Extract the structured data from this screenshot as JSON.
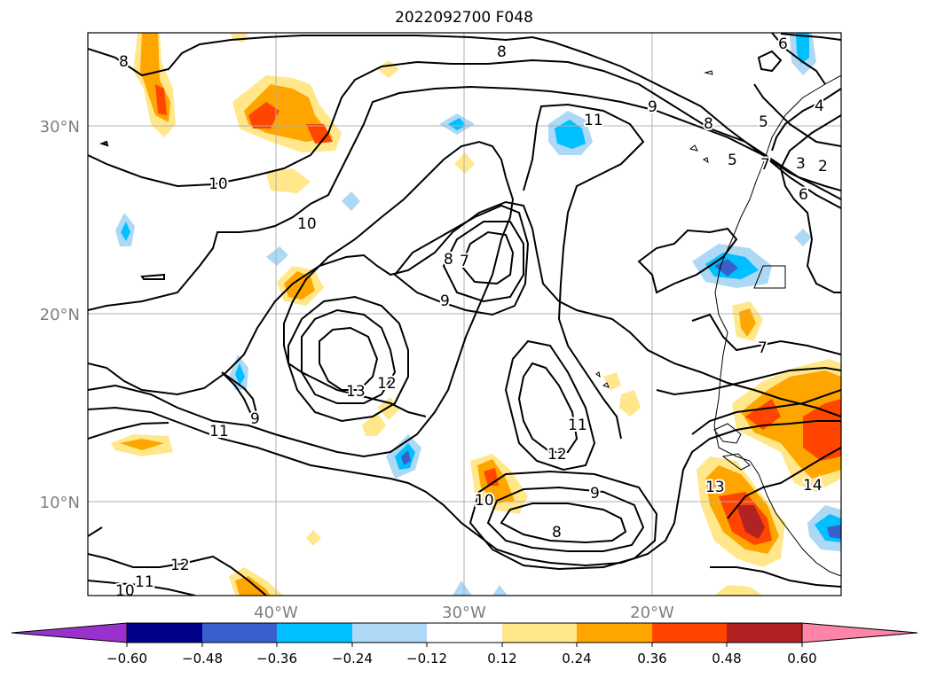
{
  "title": "2022092700 F048",
  "map": {
    "lat_labels": [
      "30°N",
      "20°N",
      "10°N"
    ],
    "lon_labels": [
      "40°W",
      "30°W",
      "20°W"
    ],
    "contour_labels": [
      "8",
      "8",
      "6",
      "5",
      "4",
      "3",
      "2",
      "6",
      "11",
      "9",
      "8",
      "7",
      "5",
      "10",
      "10",
      "8",
      "7",
      "9",
      "13",
      "12",
      "11",
      "12",
      "11",
      "9",
      "9",
      "10",
      "8",
      "7",
      "13",
      "14",
      "12",
      "11",
      "10"
    ]
  },
  "colorbar": {
    "ticks": [
      "−0.60",
      "−0.48",
      "−0.36",
      "−0.24",
      "−0.12",
      "0.12",
      "0.24",
      "0.36",
      "0.48",
      "0.60"
    ],
    "colors": [
      "#9932cc",
      "#00008b",
      "#3a5fcd",
      "#00bfff",
      "#add8f6",
      "#ffffff",
      "#ffe78a",
      "#ffa500",
      "#ff4500",
      "#b22222",
      "#ff85a8"
    ]
  }
}
